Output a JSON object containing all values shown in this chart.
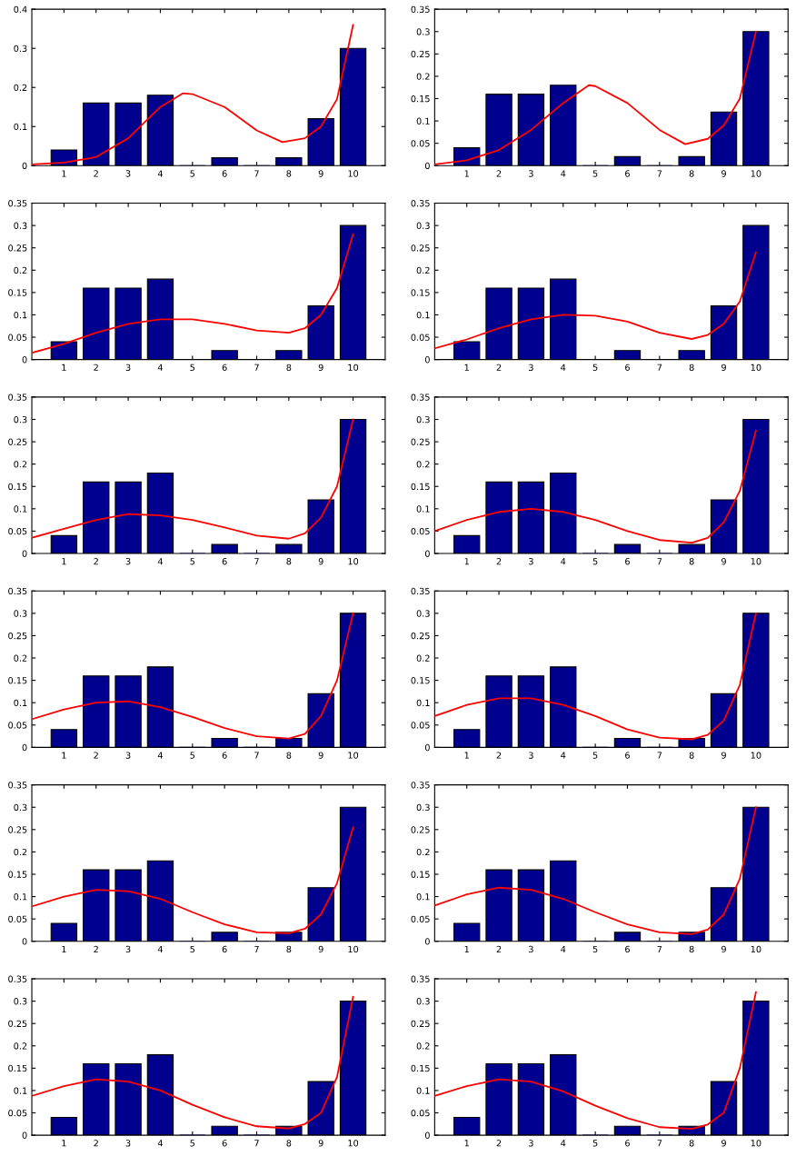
{
  "chart_data": [
    {
      "type": "bar",
      "x": [
        1,
        2,
        3,
        4,
        5,
        6,
        7,
        8,
        9,
        10
      ],
      "xlim": [
        0,
        11
      ],
      "xticks": [
        1,
        2,
        3,
        4,
        5,
        6,
        7,
        8,
        9,
        10
      ],
      "ylim": [
        0,
        0.4
      ],
      "yticks": [
        0,
        0.1,
        0.2,
        0.3,
        0.4
      ],
      "grid": false,
      "legend": false,
      "series": [
        {
          "color": "#00008f",
          "values": [
            0.04,
            0.16,
            0.16,
            0.18,
            0,
            0.02,
            0,
            0.02,
            0.12,
            0.3
          ]
        },
        {
          "type": "line",
          "color": "#ff0000",
          "x": [
            0,
            1,
            2,
            3,
            4,
            4.7,
            5,
            6,
            7,
            7.8,
            8.5,
            9,
            9.5,
            10
          ],
          "values": [
            0.003,
            0.008,
            0.022,
            0.07,
            0.15,
            0.185,
            0.183,
            0.15,
            0.09,
            0.06,
            0.07,
            0.1,
            0.17,
            0.36
          ]
        }
      ]
    },
    {
      "type": "bar",
      "x": [
        1,
        2,
        3,
        4,
        5,
        6,
        7,
        8,
        9,
        10
      ],
      "xlim": [
        0,
        11
      ],
      "xticks": [
        1,
        2,
        3,
        4,
        5,
        6,
        7,
        8,
        9,
        10
      ],
      "ylim": [
        0,
        0.35
      ],
      "yticks": [
        0,
        0.05,
        0.1,
        0.15,
        0.2,
        0.25,
        0.3,
        0.35
      ],
      "grid": false,
      "legend": false,
      "series": [
        {
          "color": "#00008f",
          "values": [
            0.04,
            0.16,
            0.16,
            0.18,
            0,
            0.02,
            0,
            0.02,
            0.12,
            0.3
          ]
        },
        {
          "type": "line",
          "color": "#ff0000",
          "x": [
            0,
            1,
            2,
            3,
            4,
            4.8,
            5,
            6,
            7,
            7.8,
            8.5,
            9,
            9.5,
            10
          ],
          "values": [
            0.003,
            0.012,
            0.035,
            0.08,
            0.14,
            0.18,
            0.178,
            0.14,
            0.08,
            0.048,
            0.06,
            0.09,
            0.15,
            0.3
          ]
        }
      ]
    },
    {
      "type": "bar",
      "x": [
        1,
        2,
        3,
        4,
        5,
        6,
        7,
        8,
        9,
        10
      ],
      "xlim": [
        0,
        11
      ],
      "xticks": [
        1,
        2,
        3,
        4,
        5,
        6,
        7,
        8,
        9,
        10
      ],
      "ylim": [
        0,
        0.35
      ],
      "yticks": [
        0,
        0.05,
        0.1,
        0.15,
        0.2,
        0.25,
        0.3,
        0.35
      ],
      "grid": false,
      "legend": false,
      "series": [
        {
          "color": "#00008f",
          "values": [
            0.04,
            0.16,
            0.16,
            0.18,
            0,
            0.02,
            0,
            0.02,
            0.12,
            0.3
          ]
        },
        {
          "type": "line",
          "color": "#ff0000",
          "x": [
            0,
            1,
            2,
            3,
            4,
            5,
            6,
            7,
            8,
            8.5,
            9,
            9.5,
            10
          ],
          "values": [
            0.015,
            0.035,
            0.06,
            0.08,
            0.09,
            0.09,
            0.08,
            0.065,
            0.06,
            0.07,
            0.1,
            0.16,
            0.28
          ]
        }
      ]
    },
    {
      "type": "bar",
      "x": [
        1,
        2,
        3,
        4,
        5,
        6,
        7,
        8,
        9,
        10
      ],
      "xlim": [
        0,
        11
      ],
      "xticks": [
        1,
        2,
        3,
        4,
        5,
        6,
        7,
        8,
        9,
        10
      ],
      "ylim": [
        0,
        0.35
      ],
      "yticks": [
        0,
        0.05,
        0.1,
        0.15,
        0.2,
        0.25,
        0.3,
        0.35
      ],
      "grid": false,
      "legend": false,
      "series": [
        {
          "color": "#00008f",
          "values": [
            0.04,
            0.16,
            0.16,
            0.18,
            0,
            0.02,
            0,
            0.02,
            0.12,
            0.3
          ]
        },
        {
          "type": "line",
          "color": "#ff0000",
          "x": [
            0,
            1,
            2,
            3,
            4,
            5,
            6,
            7,
            8,
            8.5,
            9,
            9.5,
            10
          ],
          "values": [
            0.025,
            0.045,
            0.07,
            0.09,
            0.1,
            0.098,
            0.085,
            0.06,
            0.046,
            0.055,
            0.08,
            0.13,
            0.24
          ]
        }
      ]
    },
    {
      "type": "bar",
      "x": [
        1,
        2,
        3,
        4,
        5,
        6,
        7,
        8,
        9,
        10
      ],
      "xlim": [
        0,
        11
      ],
      "xticks": [
        1,
        2,
        3,
        4,
        5,
        6,
        7,
        8,
        9,
        10
      ],
      "ylim": [
        0,
        0.35
      ],
      "yticks": [
        0,
        0.05,
        0.1,
        0.15,
        0.2,
        0.25,
        0.3,
        0.35
      ],
      "grid": false,
      "legend": false,
      "series": [
        {
          "color": "#00008f",
          "values": [
            0.04,
            0.16,
            0.16,
            0.18,
            0,
            0.02,
            0,
            0.02,
            0.12,
            0.3
          ]
        },
        {
          "type": "line",
          "color": "#ff0000",
          "x": [
            0,
            1,
            2,
            3,
            4,
            5,
            6,
            7,
            8,
            8.5,
            9,
            9.5,
            10
          ],
          "values": [
            0.035,
            0.055,
            0.075,
            0.088,
            0.085,
            0.075,
            0.058,
            0.04,
            0.033,
            0.045,
            0.08,
            0.15,
            0.3
          ]
        }
      ]
    },
    {
      "type": "bar",
      "x": [
        1,
        2,
        3,
        4,
        5,
        6,
        7,
        8,
        9,
        10
      ],
      "xlim": [
        0,
        11
      ],
      "xticks": [
        1,
        2,
        3,
        4,
        5,
        6,
        7,
        8,
        9,
        10
      ],
      "ylim": [
        0,
        0.35
      ],
      "yticks": [
        0,
        0.05,
        0.1,
        0.15,
        0.2,
        0.25,
        0.3,
        0.35
      ],
      "grid": false,
      "legend": false,
      "series": [
        {
          "color": "#00008f",
          "values": [
            0.04,
            0.16,
            0.16,
            0.18,
            0,
            0.02,
            0,
            0.02,
            0.12,
            0.3
          ]
        },
        {
          "type": "line",
          "color": "#ff0000",
          "x": [
            0,
            1,
            2,
            3,
            4,
            5,
            6,
            7,
            8,
            8.5,
            9,
            9.5,
            10
          ],
          "values": [
            0.05,
            0.075,
            0.093,
            0.1,
            0.093,
            0.075,
            0.05,
            0.03,
            0.024,
            0.035,
            0.07,
            0.14,
            0.275
          ]
        }
      ]
    },
    {
      "type": "bar",
      "x": [
        1,
        2,
        3,
        4,
        5,
        6,
        7,
        8,
        9,
        10
      ],
      "xlim": [
        0,
        11
      ],
      "xticks": [
        1,
        2,
        3,
        4,
        5,
        6,
        7,
        8,
        9,
        10
      ],
      "ylim": [
        0,
        0.35
      ],
      "yticks": [
        0,
        0.05,
        0.1,
        0.15,
        0.2,
        0.25,
        0.3,
        0.35
      ],
      "grid": false,
      "legend": false,
      "series": [
        {
          "color": "#00008f",
          "values": [
            0.04,
            0.16,
            0.16,
            0.18,
            0,
            0.02,
            0,
            0.02,
            0.12,
            0.3
          ]
        },
        {
          "type": "line",
          "color": "#ff0000",
          "x": [
            0,
            1,
            2,
            3,
            4,
            5,
            6,
            7,
            8,
            8.5,
            9,
            9.5,
            10
          ],
          "values": [
            0.063,
            0.085,
            0.1,
            0.103,
            0.09,
            0.068,
            0.043,
            0.025,
            0.02,
            0.03,
            0.07,
            0.15,
            0.3
          ]
        }
      ]
    },
    {
      "type": "bar",
      "x": [
        1,
        2,
        3,
        4,
        5,
        6,
        7,
        8,
        9,
        10
      ],
      "xlim": [
        0,
        11
      ],
      "xticks": [
        1,
        2,
        3,
        4,
        5,
        6,
        7,
        8,
        9,
        10
      ],
      "ylim": [
        0,
        0.35
      ],
      "yticks": [
        0,
        0.05,
        0.1,
        0.15,
        0.2,
        0.25,
        0.3,
        0.35
      ],
      "grid": false,
      "legend": false,
      "series": [
        {
          "color": "#00008f",
          "values": [
            0.04,
            0.16,
            0.16,
            0.18,
            0,
            0.02,
            0,
            0.02,
            0.12,
            0.3
          ]
        },
        {
          "type": "line",
          "color": "#ff0000",
          "x": [
            0,
            1,
            2,
            3,
            4,
            5,
            6,
            7,
            8,
            8.5,
            9,
            9.5,
            10
          ],
          "values": [
            0.07,
            0.095,
            0.11,
            0.11,
            0.095,
            0.07,
            0.04,
            0.022,
            0.018,
            0.028,
            0.06,
            0.14,
            0.3
          ]
        }
      ]
    },
    {
      "type": "bar",
      "x": [
        1,
        2,
        3,
        4,
        5,
        6,
        7,
        8,
        9,
        10
      ],
      "xlim": [
        0,
        11
      ],
      "xticks": [
        1,
        2,
        3,
        4,
        5,
        6,
        7,
        8,
        9,
        10
      ],
      "ylim": [
        0,
        0.35
      ],
      "yticks": [
        0,
        0.05,
        0.1,
        0.15,
        0.2,
        0.25,
        0.3,
        0.35
      ],
      "grid": false,
      "legend": false,
      "series": [
        {
          "color": "#00008f",
          "values": [
            0.04,
            0.16,
            0.16,
            0.18,
            0,
            0.02,
            0,
            0.02,
            0.12,
            0.3
          ]
        },
        {
          "type": "line",
          "color": "#ff0000",
          "x": [
            0,
            1,
            2,
            3,
            4,
            5,
            6,
            7,
            8,
            8.5,
            9,
            9.5,
            10
          ],
          "values": [
            0.078,
            0.1,
            0.115,
            0.112,
            0.095,
            0.065,
            0.038,
            0.02,
            0.018,
            0.028,
            0.06,
            0.13,
            0.255
          ]
        }
      ]
    },
    {
      "type": "bar",
      "x": [
        1,
        2,
        3,
        4,
        5,
        6,
        7,
        8,
        9,
        10
      ],
      "xlim": [
        0,
        11
      ],
      "xticks": [
        1,
        2,
        3,
        4,
        5,
        6,
        7,
        8,
        9,
        10
      ],
      "ylim": [
        0,
        0.35
      ],
      "yticks": [
        0,
        0.05,
        0.1,
        0.15,
        0.2,
        0.25,
        0.3,
        0.35
      ],
      "grid": false,
      "legend": false,
      "series": [
        {
          "color": "#00008f",
          "values": [
            0.04,
            0.16,
            0.16,
            0.18,
            0,
            0.02,
            0,
            0.02,
            0.12,
            0.3
          ]
        },
        {
          "type": "line",
          "color": "#ff0000",
          "x": [
            0,
            1,
            2,
            3,
            4,
            5,
            6,
            7,
            8,
            8.5,
            9,
            9.5,
            10
          ],
          "values": [
            0.08,
            0.105,
            0.12,
            0.115,
            0.095,
            0.065,
            0.038,
            0.02,
            0.016,
            0.026,
            0.06,
            0.14,
            0.3
          ]
        }
      ]
    },
    {
      "type": "bar",
      "x": [
        1,
        2,
        3,
        4,
        5,
        6,
        7,
        8,
        9,
        10
      ],
      "xlim": [
        0,
        11
      ],
      "xticks": [
        1,
        2,
        3,
        4,
        5,
        6,
        7,
        8,
        9,
        10
      ],
      "ylim": [
        0,
        0.35
      ],
      "yticks": [
        0,
        0.05,
        0.1,
        0.15,
        0.2,
        0.25,
        0.3,
        0.35
      ],
      "grid": false,
      "legend": false,
      "series": [
        {
          "color": "#00008f",
          "values": [
            0.04,
            0.16,
            0.16,
            0.18,
            0,
            0.02,
            0,
            0.02,
            0.12,
            0.3
          ]
        },
        {
          "type": "line",
          "color": "#ff0000",
          "x": [
            0,
            1,
            2,
            3,
            4,
            5,
            6,
            7,
            8,
            8.5,
            9,
            9.5,
            10
          ],
          "values": [
            0.088,
            0.11,
            0.125,
            0.12,
            0.1,
            0.068,
            0.04,
            0.02,
            0.015,
            0.025,
            0.05,
            0.13,
            0.31
          ]
        }
      ]
    },
    {
      "type": "bar",
      "x": [
        1,
        2,
        3,
        4,
        5,
        6,
        7,
        8,
        9,
        10
      ],
      "xlim": [
        0,
        11
      ],
      "xticks": [
        1,
        2,
        3,
        4,
        5,
        6,
        7,
        8,
        9,
        10
      ],
      "ylim": [
        0,
        0.35
      ],
      "yticks": [
        0,
        0.05,
        0.1,
        0.15,
        0.2,
        0.25,
        0.3,
        0.35
      ],
      "grid": false,
      "legend": false,
      "series": [
        {
          "color": "#00008f",
          "values": [
            0.04,
            0.16,
            0.16,
            0.18,
            0,
            0.02,
            0,
            0.02,
            0.12,
            0.3
          ]
        },
        {
          "type": "line",
          "color": "#ff0000",
          "x": [
            0,
            1,
            2,
            3,
            4,
            5,
            6,
            7,
            8,
            8.5,
            9,
            9.5,
            10
          ],
          "values": [
            0.088,
            0.11,
            0.125,
            0.12,
            0.098,
            0.066,
            0.038,
            0.018,
            0.014,
            0.024,
            0.05,
            0.15,
            0.32
          ]
        }
      ]
    }
  ]
}
